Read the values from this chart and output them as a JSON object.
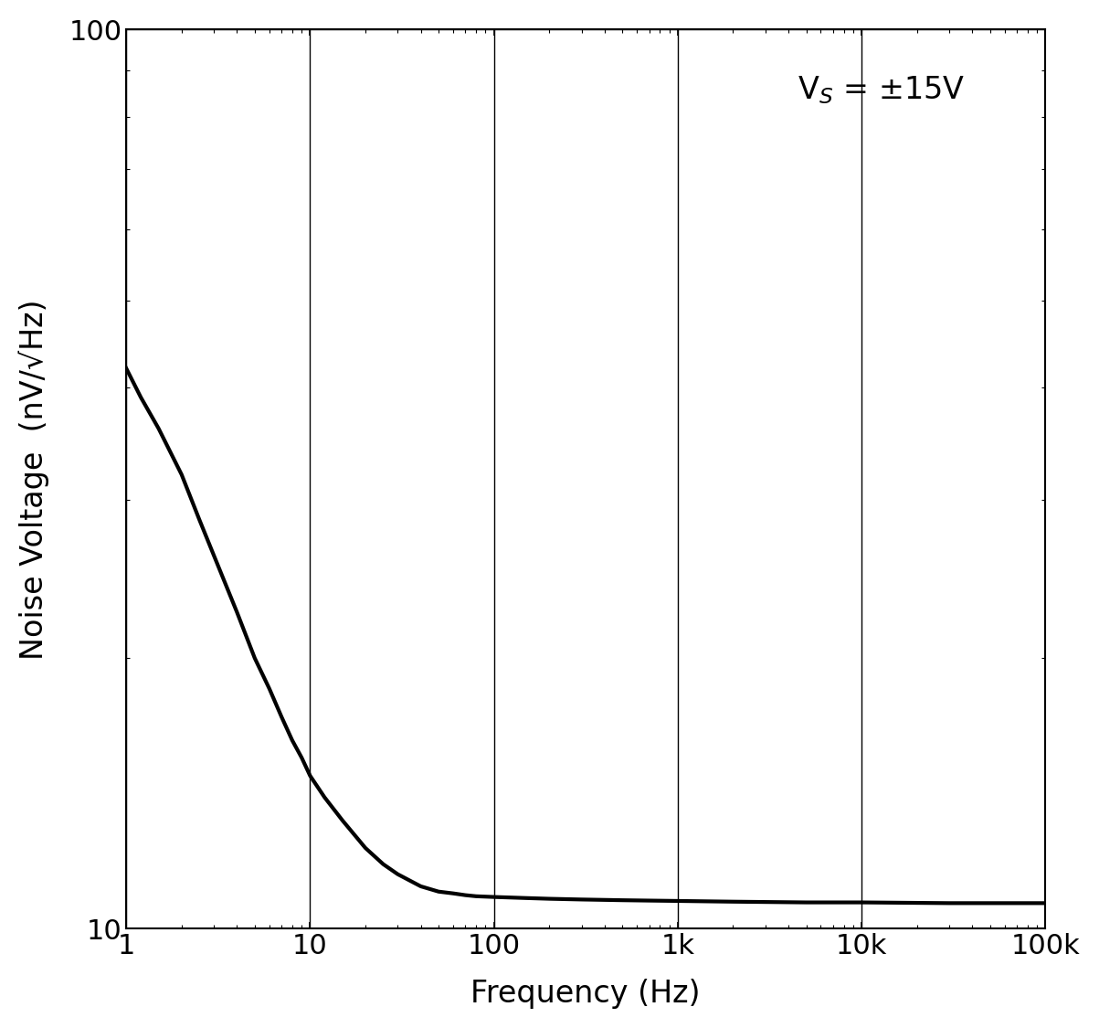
{
  "xlabel": "Frequency (Hz)",
  "ylabel": "Noise Voltage  (nV/√Hz)",
  "annotation": "V$_S$ = ±15V",
  "xlim": [
    1,
    100000
  ],
  "ylim": [
    10,
    100
  ],
  "xtick_labels": [
    "1",
    "10",
    "100",
    "1k",
    "10k",
    "100k"
  ],
  "xtick_vals": [
    1,
    10,
    100,
    1000,
    10000,
    100000
  ],
  "ytick_labels": [
    "10",
    "100"
  ],
  "ytick_vals": [
    10,
    100
  ],
  "ymid_ticks": [
    20,
    30,
    40,
    50,
    60,
    70,
    80,
    90
  ],
  "xmid_ticks": [
    2,
    3,
    4,
    5,
    6,
    7,
    8,
    9,
    20,
    30,
    40,
    50,
    60,
    70,
    80,
    90,
    200,
    300,
    400,
    500,
    600,
    700,
    800,
    900,
    2000,
    3000,
    4000,
    5000,
    6000,
    7000,
    8000,
    9000,
    20000,
    30000,
    40000,
    50000,
    60000,
    70000,
    80000,
    90000
  ],
  "line_color": "#000000",
  "line_width": 3.0,
  "background_color": "#ffffff",
  "grid_color": "#000000",
  "grid_major_linewidth": 1.0,
  "grid_minor_linewidth": 0.0,
  "curve_data": {
    "freq": [
      1,
      1.2,
      1.5,
      2,
      2.5,
      3,
      4,
      5,
      6,
      7,
      8,
      9,
      10,
      12,
      15,
      20,
      25,
      30,
      40,
      50,
      60,
      70,
      80,
      100,
      150,
      200,
      300,
      500,
      700,
      1000,
      2000,
      5000,
      10000,
      30000,
      100000
    ],
    "noise": [
      42,
      39,
      36,
      32,
      28.5,
      26,
      22.5,
      20,
      18.5,
      17.2,
      16.2,
      15.5,
      14.8,
      14.0,
      13.2,
      12.3,
      11.8,
      11.5,
      11.15,
      11.0,
      10.95,
      10.9,
      10.87,
      10.85,
      10.82,
      10.8,
      10.78,
      10.76,
      10.75,
      10.74,
      10.72,
      10.7,
      10.7,
      10.68,
      10.68
    ]
  }
}
